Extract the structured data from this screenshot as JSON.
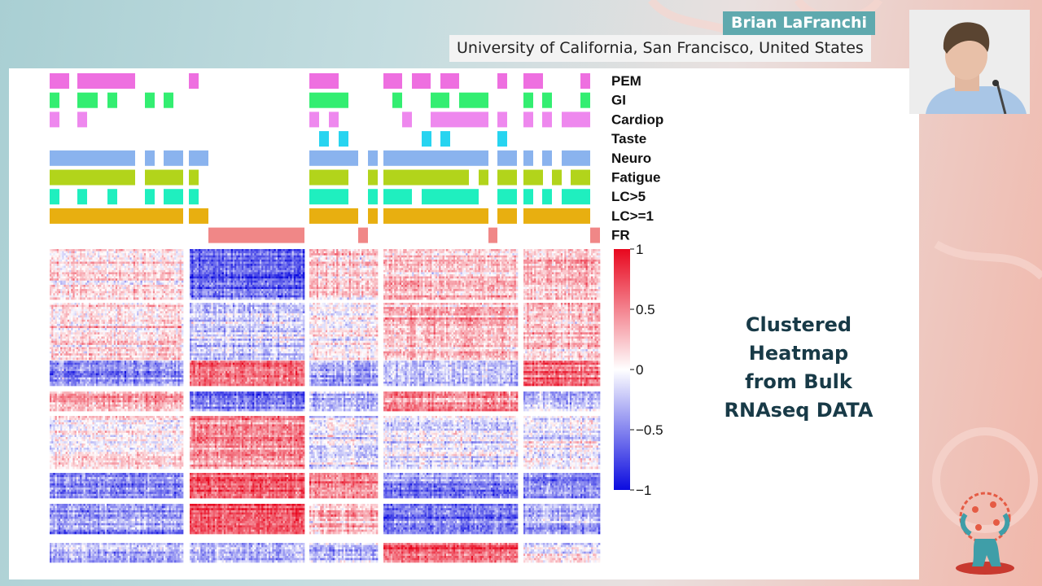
{
  "slide": {
    "title_lines": [
      "Clustered",
      "Heatmap",
      "from Bulk",
      "RNAseq DATA"
    ]
  },
  "speaker": {
    "name": "Brian LaFranchi",
    "affiliation": "University of California, San Francisco, United States"
  },
  "icons": {
    "webcam": "speaker-webcam-icon",
    "logo": "virus-globe-figure-icon"
  },
  "colors": {
    "PEM": "#ee6fe0",
    "GI": "#33ee71",
    "Cardiopulmonary": "#ee88ee",
    "Taste": "#27d4f0",
    "Neuro": "#8ab3ee",
    "Fatigue": "#b2d41b",
    "LC>5": "#1fefbf",
    "LC>=1": "#e8af10",
    "FR": "#f08787",
    "scale_high": "#e8071e",
    "scale_mid": "#ffffff",
    "scale_low": "#0b0bdf"
  },
  "chart_data": {
    "type": "heatmap",
    "title": "",
    "column_groups": 5,
    "row_clusters": 8,
    "annotation_tracks": [
      {
        "name": "PEM",
        "label": "PEM"
      },
      {
        "name": "GI",
        "label": "GI"
      },
      {
        "name": "Cardiopulmonary",
        "label": "Cardiop"
      },
      {
        "name": "Taste",
        "label": "Taste"
      },
      {
        "name": "Neuro",
        "label": "Neuro"
      },
      {
        "name": "Fatigue",
        "label": "Fatigue"
      },
      {
        "name": "LC>5",
        "label": "LC>5"
      },
      {
        "name": "LC>=1",
        "label": "LC>=1"
      },
      {
        "name": "FR",
        "label": "FR"
      }
    ],
    "cluster_mean_by_group": [
      [
        0.15,
        -0.6,
        0.2,
        0.25,
        0.25
      ],
      [
        0.15,
        -0.2,
        0.0,
        0.3,
        0.25
      ],
      [
        -0.5,
        0.55,
        -0.3,
        -0.3,
        0.55
      ],
      [
        0.3,
        -0.55,
        -0.3,
        0.45,
        -0.25
      ],
      [
        0.05,
        0.45,
        -0.05,
        -0.05,
        -0.05
      ],
      [
        -0.5,
        0.65,
        0.45,
        -0.5,
        -0.4
      ],
      [
        -0.4,
        0.65,
        0.3,
        -0.5,
        -0.35
      ],
      [
        -0.3,
        -0.3,
        -0.3,
        0.6,
        0.0
      ]
    ],
    "colorbar": {
      "min": -1,
      "max": 1,
      "ticks": [
        "1",
        "0.5",
        "0",
        "−0.5",
        "−1"
      ]
    }
  }
}
